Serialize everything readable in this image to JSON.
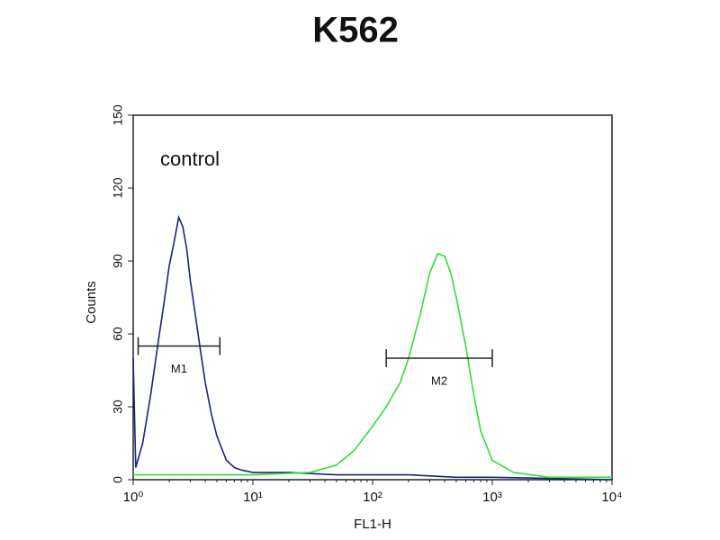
{
  "chart_data": {
    "type": "line",
    "title": "K562",
    "xlabel": "FL1-H",
    "ylabel": "Counts",
    "xscale": "log",
    "xlim": [
      1,
      10000
    ],
    "ylim": [
      0,
      150
    ],
    "xticks": [
      {
        "value": 1,
        "label": "10⁰"
      },
      {
        "value": 10,
        "label": "10¹"
      },
      {
        "value": 100,
        "label": "10²"
      },
      {
        "value": 1000,
        "label": "10³"
      },
      {
        "value": 10000,
        "label": "10⁴"
      }
    ],
    "yticks": [
      0,
      30,
      60,
      90,
      120,
      150
    ],
    "annotations": [
      "control"
    ],
    "markers": [
      {
        "label": "M1",
        "x": [
          1.1,
          5.3
        ],
        "y": 55
      },
      {
        "label": "M2",
        "x": [
          130,
          1000
        ],
        "y": 50
      }
    ],
    "series": [
      {
        "color": "#1a237e",
        "x": [
          1.0,
          1.05,
          1.2,
          1.4,
          1.6,
          1.8,
          2.0,
          2.2,
          2.4,
          2.6,
          2.8,
          3.0,
          3.3,
          3.6,
          4.0,
          4.5,
          5,
          6,
          7,
          8,
          10,
          20,
          50,
          100,
          200,
          500,
          1000,
          10000
        ],
        "values": [
          50,
          5,
          15,
          35,
          55,
          72,
          88,
          98,
          108,
          104,
          95,
          82,
          68,
          55,
          40,
          27,
          18,
          8,
          5,
          4,
          3,
          3,
          2,
          2,
          2,
          1,
          1,
          0
        ]
      },
      {
        "color": "#33dd33",
        "x": [
          1,
          10,
          30,
          50,
          70,
          100,
          130,
          170,
          200,
          250,
          300,
          350,
          400,
          450,
          500,
          600,
          700,
          800,
          1000,
          1500,
          3000,
          10000
        ],
        "values": [
          2,
          2,
          3,
          6,
          12,
          22,
          30,
          40,
          50,
          68,
          85,
          93,
          92,
          85,
          75,
          55,
          35,
          20,
          8,
          3,
          1,
          1
        ]
      }
    ]
  }
}
